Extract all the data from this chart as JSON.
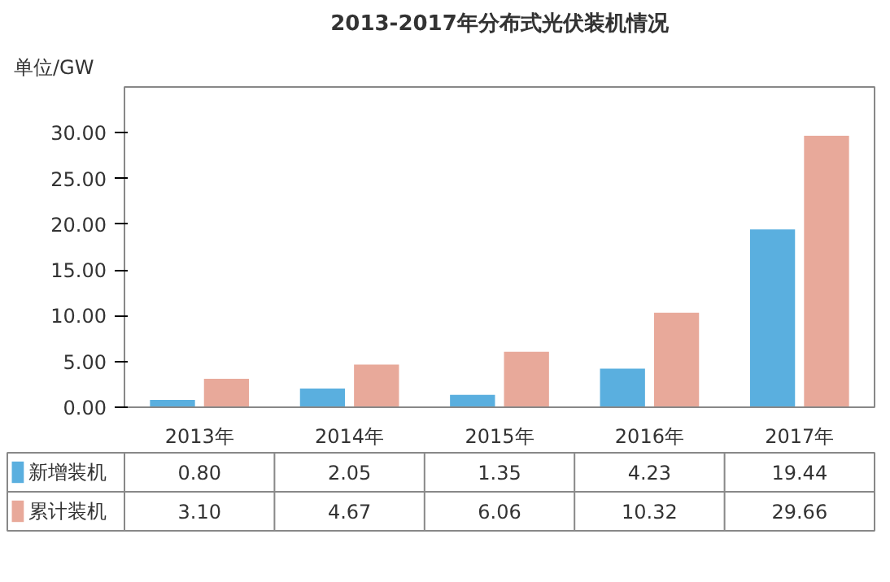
{
  "chart_data": {
    "type": "bar",
    "title": "2013-2017年分布式光伏装机情况",
    "ylabel": "单位/GW",
    "categories": [
      "2013年",
      "2014年",
      "2015年",
      "2016年",
      "2017年"
    ],
    "series": [
      {
        "name": "新增装机",
        "color": "#5aafdf",
        "values": [
          0.8,
          2.05,
          1.35,
          4.23,
          19.44
        ],
        "value_labels": [
          "0.80",
          "2.05",
          "1.35",
          "4.23",
          "19.44"
        ]
      },
      {
        "name": "累计装机",
        "color": "#e8a99a",
        "values": [
          3.1,
          4.67,
          6.06,
          10.32,
          29.66
        ],
        "value_labels": [
          "3.10",
          "4.67",
          "6.06",
          "10.32",
          "29.66"
        ]
      }
    ],
    "ylim": [
      0,
      35
    ],
    "yticks": [
      {
        "value": 0,
        "label": "0.00"
      },
      {
        "value": 5,
        "label": "5.00"
      },
      {
        "value": 10,
        "label": "10.00"
      },
      {
        "value": 15,
        "label": "15.00"
      },
      {
        "value": 20,
        "label": "20.00"
      },
      {
        "value": 25,
        "label": "25.00"
      },
      {
        "value": 30,
        "label": "30.00"
      }
    ],
    "grid": false,
    "legend": "bottom"
  }
}
